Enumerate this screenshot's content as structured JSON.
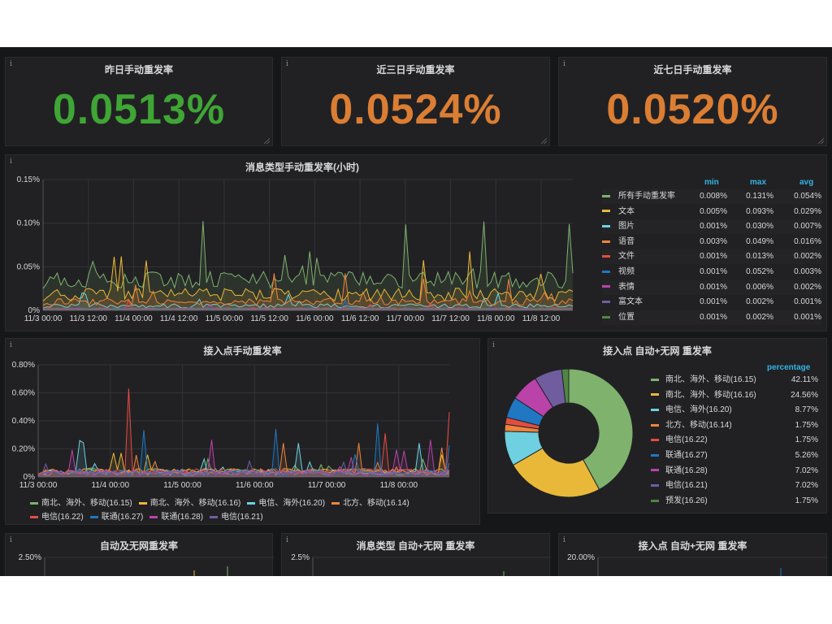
{
  "stats": [
    {
      "title": "昨日手动重发率",
      "value": "0.0513%",
      "color": "#3fa535"
    },
    {
      "title": "近三日手动重发率",
      "value": "0.0524%",
      "color": "#db7e33"
    },
    {
      "title": "近七日手动重发率",
      "value": "0.0520%",
      "color": "#db7e33"
    }
  ],
  "msg_chart": {
    "title": "消息类型手动重发率(小时)",
    "legend_headers": {
      "min": "min",
      "max": "max",
      "avg": "avg"
    },
    "chart_data": {
      "type": "line",
      "ylim": [
        0,
        0.15
      ],
      "yticks": [
        "0.15%",
        "0.10%",
        "0.05%",
        "0%"
      ],
      "xticks": [
        "11/3 00:00",
        "11/3 12:00",
        "11/4 00:00",
        "11/4 12:00",
        "11/5 00:00",
        "11/5 12:00",
        "11/6 00:00",
        "11/6 12:00",
        "11/7 00:00",
        "11/7 12:00",
        "11/8 00:00",
        "11/8 12:00"
      ],
      "series": [
        {
          "name": "所有手动重发率",
          "color": "#7eb26d",
          "min": "0.008%",
          "max": "0.131%",
          "avg": "0.054%"
        },
        {
          "name": "文本",
          "color": "#eab839",
          "min": "0.005%",
          "max": "0.093%",
          "avg": "0.029%"
        },
        {
          "name": "图片",
          "color": "#6ed0e0",
          "min": "0.001%",
          "max": "0.030%",
          "avg": "0.007%"
        },
        {
          "name": "语音",
          "color": "#ef843c",
          "min": "0.003%",
          "max": "0.049%",
          "avg": "0.016%"
        },
        {
          "name": "文件",
          "color": "#e24d42",
          "min": "0.001%",
          "max": "0.013%",
          "avg": "0.002%"
        },
        {
          "name": "视频",
          "color": "#1f78c1",
          "min": "0.001%",
          "max": "0.052%",
          "avg": "0.003%"
        },
        {
          "name": "表情",
          "color": "#ba43a9",
          "min": "0.001%",
          "max": "0.006%",
          "avg": "0.002%"
        },
        {
          "name": "富文本",
          "color": "#705da0",
          "min": "0.001%",
          "max": "0.002%",
          "avg": "0.001%"
        },
        {
          "name": "位置",
          "color": "#508642",
          "min": "0.001%",
          "max": "0.002%",
          "avg": "0.001%"
        }
      ]
    }
  },
  "access_chart": {
    "title": "接入点手动重发率",
    "chart_data": {
      "type": "line",
      "ylim": [
        0,
        0.8
      ],
      "yticks": [
        "0.80%",
        "0.60%",
        "0.40%",
        "0.20%",
        "0%"
      ],
      "xticks": [
        "11/3 00:00",
        "11/4 00:00",
        "11/5 00:00",
        "11/6 00:00",
        "11/7 00:00",
        "11/8 00:00"
      ],
      "series": [
        {
          "name": "南北、海外、移动(16.15)",
          "color": "#7eb26d"
        },
        {
          "name": "南北、海外、移动(16.16)",
          "color": "#eab839"
        },
        {
          "name": "电信、海外(16.20)",
          "color": "#6ed0e0"
        },
        {
          "name": "北方、移动(16.14)",
          "color": "#ef843c"
        },
        {
          "name": "电信(16.22)",
          "color": "#e24d42"
        },
        {
          "name": "联通(16.27)",
          "color": "#1f78c1"
        },
        {
          "name": "联通(16.28)",
          "color": "#ba43a9"
        },
        {
          "name": "电信(16.21)",
          "color": "#705da0"
        }
      ]
    }
  },
  "pie_chart": {
    "title": "接入点 自动+无网 重发率",
    "legend_header": "percentage",
    "chart_data": {
      "type": "pie",
      "slices": [
        {
          "name": "南北、海外、移动(16.15)",
          "value": 42.11,
          "label": "42.11%",
          "color": "#7eb26d"
        },
        {
          "name": "南北、海外、移动(16.16)",
          "value": 24.56,
          "label": "24.56%",
          "color": "#eab839"
        },
        {
          "name": "电信、海外(16.20)",
          "value": 8.77,
          "label": "8.77%",
          "color": "#6ed0e0"
        },
        {
          "name": "北方、移动(16.14)",
          "value": 1.75,
          "label": "1.75%",
          "color": "#ef843c"
        },
        {
          "name": "电信(16.22)",
          "value": 1.75,
          "label": "1.75%",
          "color": "#e24d42"
        },
        {
          "name": "联通(16.27)",
          "value": 5.26,
          "label": "5.26%",
          "color": "#1f78c1"
        },
        {
          "name": "联通(16.28)",
          "value": 7.02,
          "label": "7.02%",
          "color": "#ba43a9"
        },
        {
          "name": "电信(16.21)",
          "value": 7.02,
          "label": "7.02%",
          "color": "#705da0"
        },
        {
          "name": "预发(16.26)",
          "value": 1.75,
          "label": "1.75%",
          "color": "#508642"
        }
      ]
    }
  },
  "bottom_panels": [
    {
      "title": "自动及无网重发率",
      "ytick": "2.50%"
    },
    {
      "title": "消息类型 自动+无网 重发率",
      "ytick": "2.5%"
    },
    {
      "title": "接入点 自动+无网 重发率",
      "ytick": "20.00%"
    }
  ],
  "info_icon": "i"
}
